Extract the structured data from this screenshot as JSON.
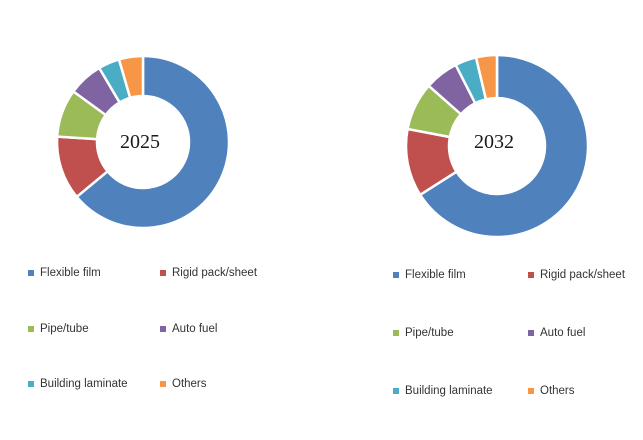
{
  "chart_data": [
    {
      "type": "pie",
      "subtype": "donut",
      "center_label": "2025",
      "categories": [
        "Flexible film",
        "Rigid pack/sheet",
        "Pipe/tube",
        "Auto fuel",
        "Building laminate",
        "Others"
      ],
      "values": [
        64,
        12,
        9,
        6.5,
        4,
        4.5
      ],
      "colors": [
        "#4f81bd",
        "#c0504d",
        "#9bbb59",
        "#8064a2",
        "#4bacc6",
        "#f79646"
      ],
      "legend": "bottom"
    },
    {
      "type": "pie",
      "subtype": "donut",
      "center_label": "2032",
      "categories": [
        "Flexible film",
        "Rigid pack/sheet",
        "Pipe/tube",
        "Auto fuel",
        "Building laminate",
        "Others"
      ],
      "values": [
        66,
        12,
        8.5,
        6,
        3.8,
        3.7
      ],
      "colors": [
        "#4f81bd",
        "#c0504d",
        "#9bbb59",
        "#8064a2",
        "#4bacc6",
        "#f79646"
      ],
      "legend": "bottom"
    }
  ]
}
